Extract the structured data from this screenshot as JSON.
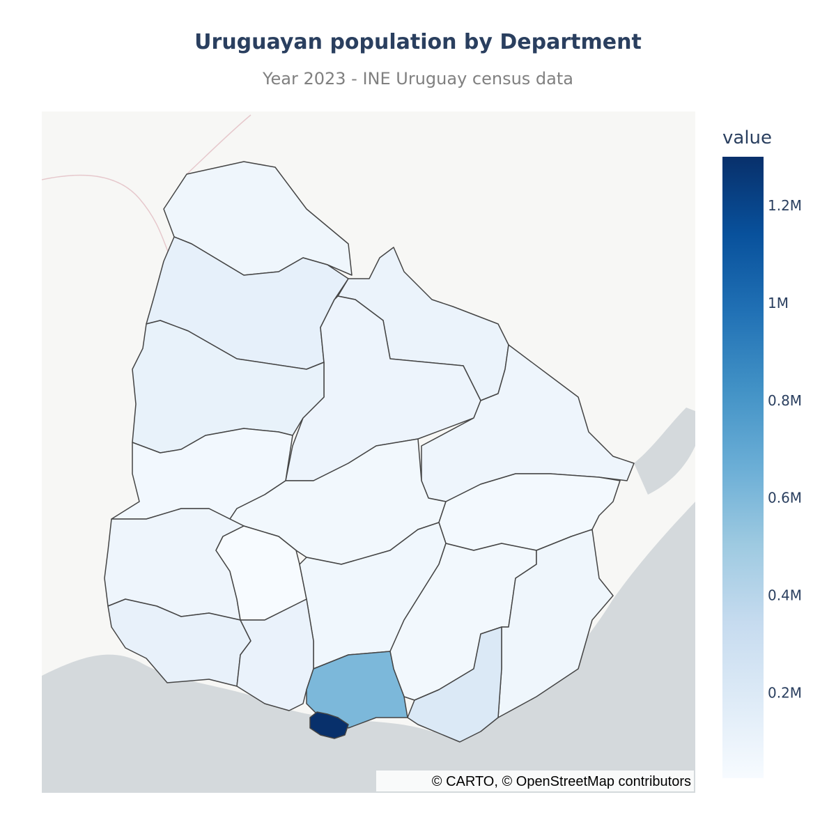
{
  "chart_data": {
    "type": "choropleth",
    "title": "Uruguayan population by Department",
    "subtitle": "Year 2023 - INE Uruguay census data",
    "colorbar_title": "value",
    "values": [
      77000,
      133000,
      103000,
      90000,
      118000,
      84000,
      54000,
      57000,
      48000,
      82000,
      26000,
      67000,
      58000,
      77000,
      123000,
      111000,
      608000,
      207000,
      1300000
    ],
    "zlim": [
      25000,
      1300000
    ],
    "zticks": [
      {
        "value": 200000,
        "label": "0.2M"
      },
      {
        "value": 400000,
        "label": "0.4M"
      },
      {
        "value": 600000,
        "label": "0.6M"
      },
      {
        "value": 800000,
        "label": "0.8M"
      },
      {
        "value": 1000000,
        "label": "1M"
      },
      {
        "value": 1200000,
        "label": "1.2M"
      }
    ],
    "colorscale": [
      "rgb(247,251,255)",
      "rgb(222,235,247)",
      "rgb(198,219,239)",
      "rgb(158,202,225)",
      "rgb(107,174,214)",
      "rgb(66,146,198)",
      "rgb(33,113,181)",
      "rgb(8,81,156)",
      "rgb(8,48,107)"
    ],
    "attribution": "© CARTO, © OpenStreetMap contributors"
  }
}
